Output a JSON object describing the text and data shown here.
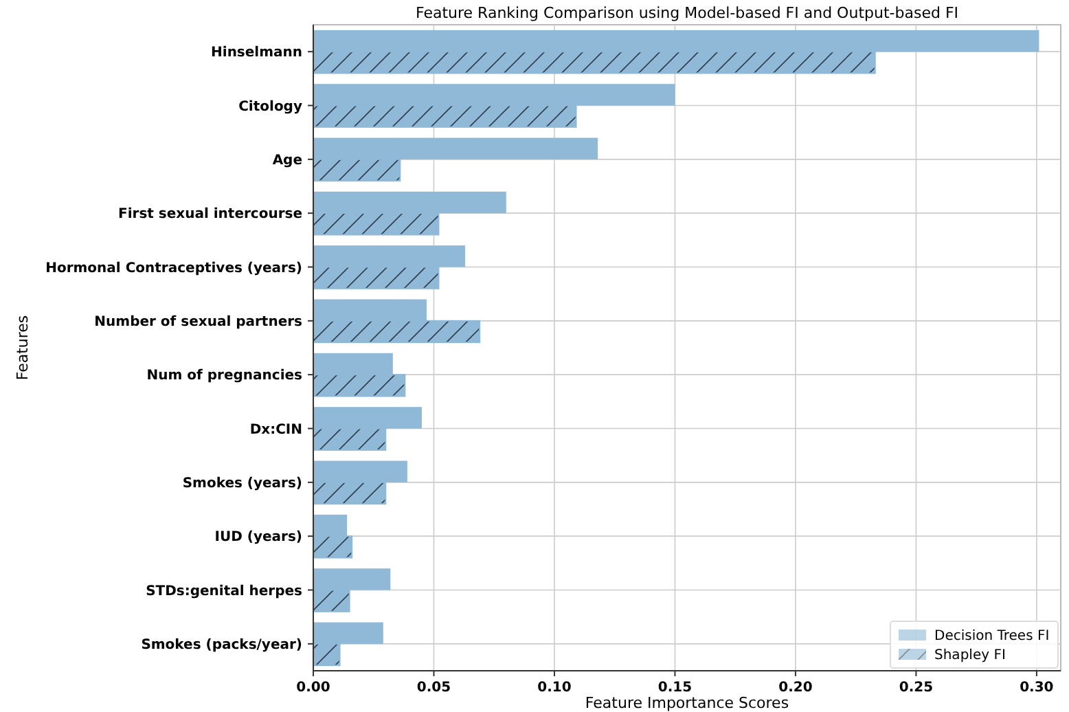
{
  "chart_data": {
    "type": "bar",
    "orientation": "horizontal",
    "title": "Feature Ranking Comparison using Model-based FI and Output-based FI",
    "xlabel": "Feature Importance Scores",
    "ylabel": "Features",
    "categories": [
      "Hinselmann",
      "Citology",
      "Age",
      "First sexual intercourse",
      "Hormonal Contraceptives (years)",
      "Number of sexual partners",
      "Num of pregnancies",
      "Dx:CIN",
      "Smokes (years)",
      "IUD (years)",
      "STDs:genital herpes",
      "Smokes (packs/year)"
    ],
    "series": [
      {
        "name": "Decision Trees FI",
        "color": "#8fb9d6",
        "values": [
          0.301,
          0.15,
          0.118,
          0.08,
          0.063,
          0.047,
          0.033,
          0.045,
          0.039,
          0.014,
          0.032,
          0.029
        ]
      },
      {
        "name": "Shapley FI",
        "color": "#8fb9d6",
        "values": [
          0.233,
          0.109,
          0.036,
          0.052,
          0.052,
          0.069,
          0.038,
          0.03,
          0.03,
          0.016,
          0.015,
          0.011
        ]
      }
    ],
    "xlim": [
      0,
      0.31
    ],
    "xticks": [
      {
        "value": 0,
        "label": "0.00"
      },
      {
        "value": 0.05,
        "label": "0.05"
      },
      {
        "value": 0.1,
        "label": "0.10"
      },
      {
        "value": 0.15,
        "label": "0.15"
      },
      {
        "value": 0.2,
        "label": "0.20"
      },
      {
        "value": 0.25,
        "label": "0.25"
      },
      {
        "value": 0.3,
        "label": "0.30"
      }
    ],
    "grid": true,
    "legend": "bottom right"
  }
}
